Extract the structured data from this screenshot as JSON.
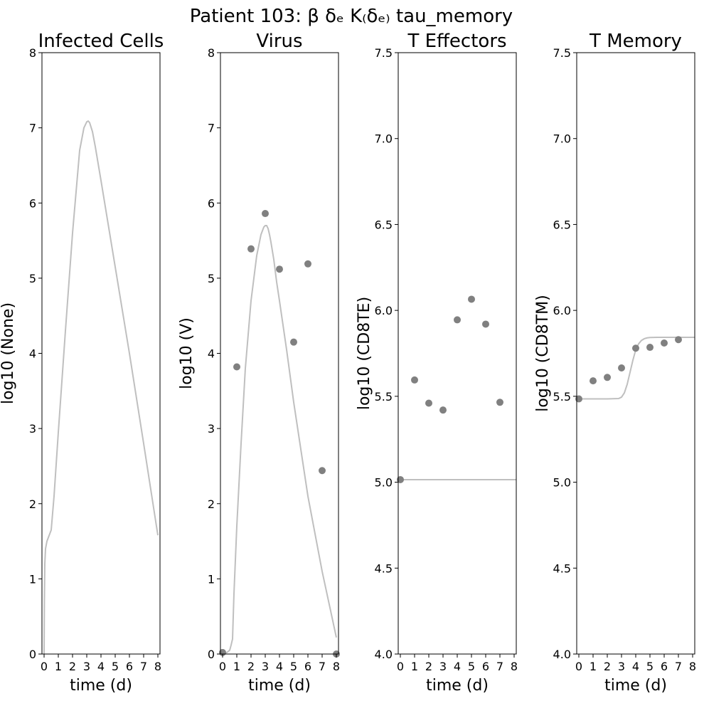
{
  "figure": {
    "suptitle": "Patient 103: β δₑ K₍δₑ₎ tau_memory"
  },
  "colors": {
    "curve": "#bfbfbf",
    "points": "#808080",
    "axes": "#000000"
  },
  "chart_data": [
    {
      "type": "line",
      "title": "Infected Cells",
      "xlabel": "time (d)",
      "ylabel": "log10 (None)",
      "xlim": [
        -0.15,
        8.15
      ],
      "ylim": [
        0,
        8
      ],
      "xticks": [
        0,
        1,
        2,
        3,
        4,
        5,
        6,
        7,
        8
      ],
      "yticks": [
        0,
        1,
        2,
        3,
        4,
        5,
        6,
        7,
        8
      ],
      "ytick_labels": [
        "0",
        "1",
        "2",
        "3",
        "4",
        "5",
        "6",
        "7",
        "8"
      ],
      "grid": false,
      "curve": {
        "x": [
          0,
          0.02,
          0.05,
          0.1,
          0.2,
          0.3,
          0.5,
          0.7,
          1.0,
          1.5,
          2.0,
          2.5,
          2.8,
          3.0,
          3.1,
          3.2,
          3.4,
          3.6,
          4.0,
          5.0,
          6.0,
          7.0,
          8.0
        ],
        "y": [
          0,
          0.7,
          1.2,
          1.4,
          1.5,
          1.55,
          1.65,
          2.1,
          2.95,
          4.3,
          5.6,
          6.7,
          7.0,
          7.08,
          7.09,
          7.07,
          6.95,
          6.75,
          6.3,
          5.15,
          4.0,
          2.8,
          1.58
        ]
      },
      "points": {
        "x": [],
        "y": []
      }
    },
    {
      "type": "scatter",
      "title": "Virus",
      "xlabel": "time (d)",
      "ylabel": "log10 (V)",
      "xlim": [
        -0.15,
        8.15
      ],
      "ylim": [
        0,
        8
      ],
      "xticks": [
        0,
        1,
        2,
        3,
        4,
        5,
        6,
        7,
        8
      ],
      "yticks": [
        0,
        1,
        2,
        3,
        4,
        5,
        6,
        7,
        8
      ],
      "ytick_labels": [
        "0",
        "1",
        "2",
        "3",
        "4",
        "5",
        "6",
        "7",
        "8"
      ],
      "grid": false,
      "curve": {
        "x": [
          0,
          0.3,
          0.5,
          0.6,
          0.7,
          0.8,
          1.0,
          1.3,
          1.6,
          2.0,
          2.4,
          2.7,
          2.9,
          3.0,
          3.1,
          3.2,
          3.3,
          3.4,
          3.6,
          3.8,
          4.0,
          4.5,
          5.0,
          6.0,
          7.0,
          8.0
        ],
        "y": [
          0,
          0.02,
          0.05,
          0.12,
          0.2,
          0.8,
          1.7,
          2.8,
          3.8,
          4.7,
          5.3,
          5.58,
          5.68,
          5.7,
          5.7,
          5.66,
          5.58,
          5.48,
          5.25,
          4.95,
          4.7,
          4.05,
          3.35,
          2.1,
          1.1,
          0.22
        ]
      },
      "points": {
        "x": [
          0,
          1,
          2,
          3,
          4,
          5,
          6,
          7,
          8
        ],
        "y": [
          0.02,
          3.82,
          5.39,
          5.86,
          5.12,
          4.15,
          5.19,
          2.44,
          0.0
        ]
      }
    },
    {
      "type": "scatter",
      "title": "T Effectors",
      "xlabel": "time (d)",
      "ylabel": "log10 (CD8TE)",
      "xlim": [
        -0.15,
        8.15
      ],
      "ylim": [
        4.0,
        7.5
      ],
      "xticks": [
        0,
        1,
        2,
        3,
        4,
        5,
        6,
        7,
        8
      ],
      "yticks": [
        4.0,
        4.5,
        5.0,
        5.5,
        6.0,
        6.5,
        7.0,
        7.5
      ],
      "ytick_labels": [
        "4.0",
        "4.5",
        "5.0",
        "5.5",
        "6.0",
        "6.5",
        "7.0",
        "7.5"
      ],
      "grid": false,
      "curve": {
        "x": [
          0,
          8.15
        ],
        "y": [
          5.015,
          5.015
        ]
      },
      "points": {
        "x": [
          0,
          1,
          2,
          3,
          4,
          5,
          6,
          7
        ],
        "y": [
          5.015,
          5.595,
          5.46,
          5.42,
          5.945,
          6.065,
          5.92,
          5.465
        ]
      }
    },
    {
      "type": "scatter",
      "title": "T Memory",
      "xlabel": "time (d)",
      "ylabel": "log10 (CD8TM)",
      "xlim": [
        -0.15,
        8.15
      ],
      "ylim": [
        4.0,
        7.5
      ],
      "xticks": [
        0,
        1,
        2,
        3,
        4,
        5,
        6,
        7,
        8
      ],
      "yticks": [
        4.0,
        4.5,
        5.0,
        5.5,
        6.0,
        6.5,
        7.0,
        7.5
      ],
      "ytick_labels": [
        "4.0",
        "4.5",
        "5.0",
        "5.5",
        "6.0",
        "6.5",
        "7.0",
        "7.5"
      ],
      "grid": false,
      "curve": {
        "x": [
          0,
          1,
          2,
          2.8,
          3.0,
          3.2,
          3.4,
          3.6,
          3.8,
          4.0,
          4.2,
          4.4,
          4.6,
          4.8,
          5.0,
          5.5,
          6.0,
          7.0,
          8.15
        ],
        "y": [
          5.485,
          5.485,
          5.485,
          5.487,
          5.495,
          5.52,
          5.57,
          5.64,
          5.71,
          5.77,
          5.805,
          5.825,
          5.835,
          5.84,
          5.842,
          5.843,
          5.843,
          5.843,
          5.843
        ]
      },
      "points": {
        "x": [
          0,
          1,
          2,
          3,
          4,
          5,
          6,
          7
        ],
        "y": [
          5.485,
          5.59,
          5.61,
          5.665,
          5.78,
          5.785,
          5.81,
          5.83
        ]
      }
    }
  ]
}
